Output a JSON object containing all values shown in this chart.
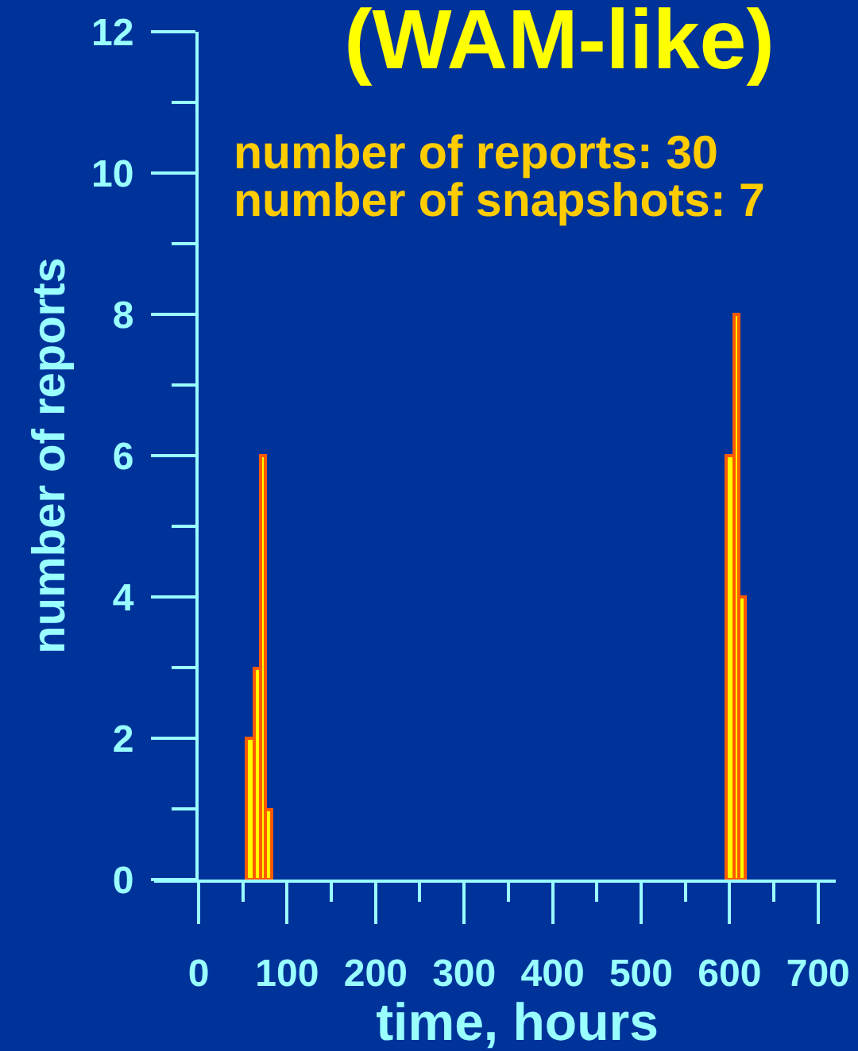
{
  "chart_data": {
    "type": "histogram",
    "title": "(WAM-like)",
    "xlabel": "time, hours",
    "ylabel": "number of reports",
    "annotations": [
      "number of reports: 30",
      "number of snapshots: 7"
    ],
    "bins": [
      54,
      63,
      70,
      76,
      82,
      596,
      605,
      611,
      618
    ],
    "values": [
      2,
      3,
      6,
      1,
      null,
      6,
      8,
      4
    ],
    "color": "#ffff00",
    "xlim": [
      0,
      720
    ],
    "xticks": [
      0,
      {
        "value": 50,
        "label": null
      },
      100,
      {
        "value": 150,
        "label": null
      },
      200,
      {
        "value": 250,
        "label": null
      },
      300,
      {
        "value": 350,
        "label": null
      },
      400,
      {
        "value": 450,
        "label": null
      },
      500,
      {
        "value": 550,
        "label": null
      },
      600,
      {
        "value": 650,
        "label": null
      },
      700
    ],
    "ylim": [
      0,
      12
    ],
    "yticks": [
      0,
      {
        "value": 1,
        "label": null
      },
      2,
      {
        "value": 3,
        "label": null
      },
      4,
      {
        "value": 5,
        "label": null
      },
      6,
      {
        "value": 7,
        "label": null
      },
      8,
      {
        "value": 9,
        "label": null
      },
      10,
      {
        "value": 11,
        "label": null
      },
      12
    ],
    "grid": false
  }
}
